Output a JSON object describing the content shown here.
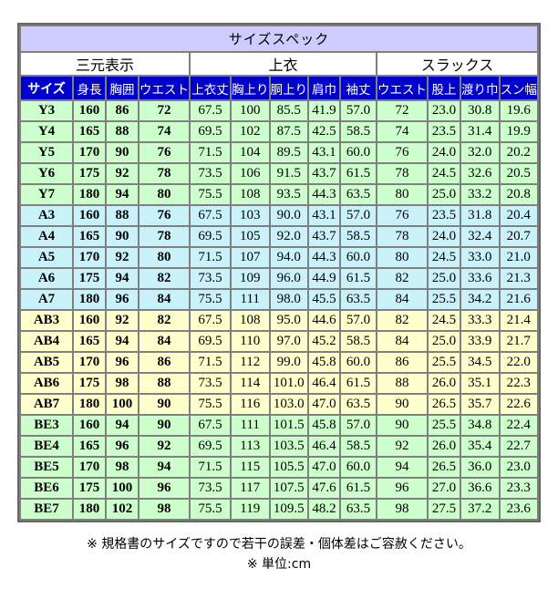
{
  "table": {
    "title": "サイズスペック",
    "groups": [
      {
        "label": "三元表示",
        "span": 4
      },
      {
        "label": "上衣",
        "span": 5
      },
      {
        "label": "スラックス",
        "span": 4
      }
    ],
    "columns": [
      "サイズ",
      "身長",
      "胸囲",
      "ウエスト",
      "上衣丈",
      "胸上り",
      "胴上り",
      "肩巾",
      "袖丈",
      "ウエスト",
      "股上",
      "渡り巾",
      "スン幅"
    ],
    "rows": [
      {
        "group": "Y",
        "cells": [
          "Y3",
          "160",
          "86",
          "72",
          "67.5",
          "100",
          "85.5",
          "41.9",
          "57.0",
          "72",
          "23.0",
          "30.8",
          "19.6"
        ]
      },
      {
        "group": "Y",
        "cells": [
          "Y4",
          "165",
          "88",
          "74",
          "69.5",
          "102",
          "87.5",
          "42.5",
          "58.5",
          "74",
          "23.5",
          "31.4",
          "19.9"
        ]
      },
      {
        "group": "Y",
        "cells": [
          "Y5",
          "170",
          "90",
          "76",
          "71.5",
          "104",
          "89.5",
          "43.1",
          "60.0",
          "76",
          "24.0",
          "32.0",
          "20.2"
        ]
      },
      {
        "group": "Y",
        "cells": [
          "Y6",
          "175",
          "92",
          "78",
          "73.5",
          "106",
          "91.5",
          "43.7",
          "61.5",
          "78",
          "24.5",
          "32.6",
          "20.5"
        ]
      },
      {
        "group": "Y",
        "cells": [
          "Y7",
          "180",
          "94",
          "80",
          "75.5",
          "108",
          "93.5",
          "44.3",
          "63.5",
          "80",
          "25.0",
          "33.2",
          "20.8"
        ]
      },
      {
        "group": "A",
        "cells": [
          "A3",
          "160",
          "88",
          "76",
          "67.5",
          "103",
          "90.0",
          "43.1",
          "57.0",
          "76",
          "23.5",
          "31.8",
          "20.4"
        ]
      },
      {
        "group": "A",
        "cells": [
          "A4",
          "165",
          "90",
          "78",
          "69.5",
          "105",
          "92.0",
          "43.7",
          "58.5",
          "78",
          "24.0",
          "32.4",
          "20.7"
        ]
      },
      {
        "group": "A",
        "cells": [
          "A5",
          "170",
          "92",
          "80",
          "71.5",
          "107",
          "94.0",
          "44.3",
          "60.0",
          "80",
          "24.5",
          "33.0",
          "21.0"
        ]
      },
      {
        "group": "A",
        "cells": [
          "A6",
          "175",
          "94",
          "82",
          "73.5",
          "109",
          "96.0",
          "44.9",
          "61.5",
          "82",
          "25.0",
          "33.6",
          "21.3"
        ]
      },
      {
        "group": "A",
        "cells": [
          "A7",
          "180",
          "96",
          "84",
          "75.5",
          "111",
          "98.0",
          "45.5",
          "63.5",
          "84",
          "25.5",
          "34.2",
          "21.6"
        ]
      },
      {
        "group": "AB",
        "cells": [
          "AB3",
          "160",
          "92",
          "82",
          "67.5",
          "108",
          "95.0",
          "44.6",
          "57.0",
          "82",
          "24.5",
          "33.3",
          "21.4"
        ]
      },
      {
        "group": "AB",
        "cells": [
          "AB4",
          "165",
          "94",
          "84",
          "69.5",
          "110",
          "97.0",
          "45.2",
          "58.5",
          "84",
          "25.0",
          "33.9",
          "21.7"
        ]
      },
      {
        "group": "AB",
        "cells": [
          "AB5",
          "170",
          "96",
          "86",
          "71.5",
          "112",
          "99.0",
          "45.8",
          "60.0",
          "86",
          "25.5",
          "34.5",
          "22.0"
        ]
      },
      {
        "group": "AB",
        "cells": [
          "AB6",
          "175",
          "98",
          "88",
          "73.5",
          "114",
          "101.0",
          "46.4",
          "61.5",
          "88",
          "26.0",
          "35.1",
          "22.3"
        ]
      },
      {
        "group": "AB",
        "cells": [
          "AB7",
          "180",
          "100",
          "90",
          "75.5",
          "116",
          "103.0",
          "47.0",
          "63.5",
          "90",
          "26.5",
          "35.7",
          "22.6"
        ]
      },
      {
        "group": "BE",
        "cells": [
          "BE3",
          "160",
          "94",
          "90",
          "67.5",
          "111",
          "101.5",
          "45.8",
          "57.0",
          "90",
          "25.5",
          "34.8",
          "22.4"
        ]
      },
      {
        "group": "BE",
        "cells": [
          "BE4",
          "165",
          "96",
          "92",
          "69.5",
          "113",
          "103.5",
          "46.4",
          "58.5",
          "92",
          "26.0",
          "35.4",
          "22.7"
        ]
      },
      {
        "group": "BE",
        "cells": [
          "BE5",
          "170",
          "98",
          "94",
          "71.5",
          "115",
          "105.5",
          "47.0",
          "60.0",
          "94",
          "26.5",
          "36.0",
          "23.0"
        ]
      },
      {
        "group": "BE",
        "cells": [
          "BE6",
          "175",
          "100",
          "96",
          "73.5",
          "117",
          "107.5",
          "47.6",
          "61.5",
          "96",
          "27.0",
          "36.6",
          "23.3"
        ]
      },
      {
        "group": "BE",
        "cells": [
          "BE7",
          "180",
          "102",
          "98",
          "75.5",
          "119",
          "109.5",
          "48.2",
          "63.5",
          "98",
          "27.5",
          "37.2",
          "23.6"
        ]
      }
    ],
    "colors": {
      "title_bg": "#CCCCFF",
      "group_bg": "#FFFFFF",
      "header_bg": "#0000CC",
      "header_text": "#FFFFFF",
      "row_y_bg": "#CCFFCC",
      "row_a_bg": "#C9F2FB",
      "row_ab_bg": "#FFFFCC",
      "row_be_bg": "#CCFFCC",
      "grid": "#808080"
    },
    "unit": "cm"
  },
  "footer": {
    "note_tolerance": "※ 規格書のサイズですので若干の誤差・個体差はご容赦ください。",
    "note_unit": "※ 単位:cm"
  }
}
